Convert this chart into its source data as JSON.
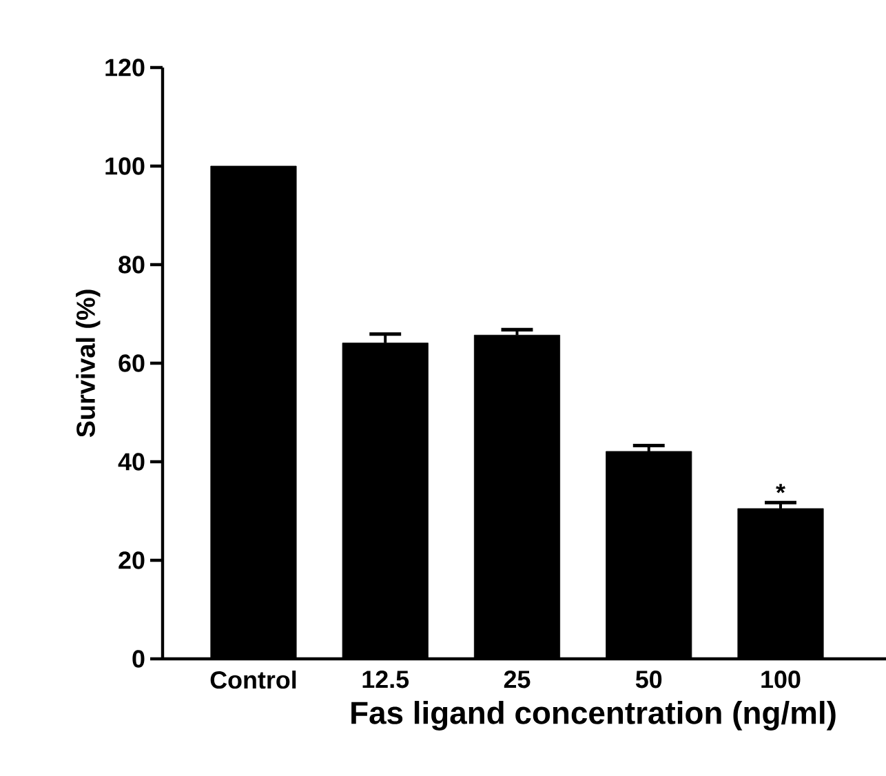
{
  "chart_data": {
    "type": "bar",
    "xlabel": "Fas ligand concentration (ng/ml)",
    "ylabel": "Survival (%)",
    "categories": [
      "Control",
      "12.5",
      "25",
      "50",
      "100"
    ],
    "values": [
      100,
      64.1,
      65.7,
      42.1,
      30.5
    ],
    "errors": [
      null,
      [
        64.1,
        65.9
      ],
      [
        65.7,
        66.8
      ],
      [
        42.1,
        43.3
      ],
      [
        30.5,
        31.7
      ]
    ],
    "color": "#000000",
    "ylim": [
      0,
      120
    ],
    "yticks": [
      0,
      20,
      40,
      60,
      80,
      100,
      120
    ],
    "grid": false,
    "annotations": [
      "*"
    ]
  }
}
